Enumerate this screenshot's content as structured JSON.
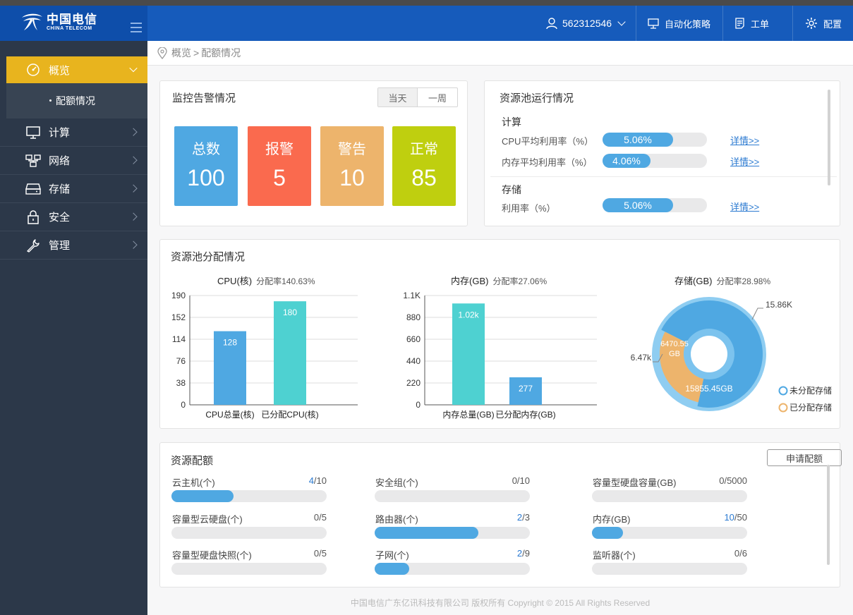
{
  "brand": {
    "name_cn": "中国电信",
    "name_en": "CHINA TELECOM"
  },
  "header": {
    "user": "562312546",
    "buttons": [
      {
        "label": "自动化策略",
        "icon": "monitor-icon"
      },
      {
        "label": "工单",
        "icon": "document-icon"
      },
      {
        "label": "配置",
        "icon": "gear-icon"
      }
    ]
  },
  "breadcrumb": {
    "home": "概览",
    "separator": ">",
    "current": "配额情况"
  },
  "sidebar": {
    "items": [
      {
        "label": "概览",
        "icon": "dashboard-icon",
        "active": true
      },
      {
        "label": "计算",
        "icon": "monitor-icon"
      },
      {
        "label": "网络",
        "icon": "network-icon"
      },
      {
        "label": "存储",
        "icon": "storage-icon"
      },
      {
        "label": "安全",
        "icon": "lock-icon"
      },
      {
        "label": "管理",
        "icon": "wrench-icon"
      }
    ],
    "submenu": {
      "label": "配额情况"
    }
  },
  "monitor": {
    "title": "监控告警情况",
    "tabs": [
      "当天",
      "一周"
    ],
    "boxes": [
      {
        "label": "总数",
        "value": "100",
        "color": "#4fa8e2"
      },
      {
        "label": "报警",
        "value": "5",
        "color": "#fa6a4e"
      },
      {
        "label": "警告",
        "value": "10",
        "color": "#edb46c"
      },
      {
        "label": "正常",
        "value": "85",
        "color": "#bfcf0f"
      }
    ]
  },
  "pool_running": {
    "title": "资源池运行情况",
    "compute": {
      "label": "计算",
      "rows": [
        {
          "label": "CPU平均利用率（%）",
          "value": "5.06%",
          "percent": 5.06,
          "link": "详情>>"
        },
        {
          "label": "内存平均利用率（%）",
          "value": "4.06%",
          "percent": 4.06,
          "link": "详情>>"
        }
      ]
    },
    "storage": {
      "label": "存储",
      "rows": [
        {
          "label": "利用率（%）",
          "value": "5.06%",
          "percent": 5.06,
          "link": "详情>>"
        }
      ]
    }
  },
  "allocation": {
    "title": "资源池分配情况",
    "cpu": {
      "title": "CPU(核)",
      "rate": "分配率140.63%"
    },
    "mem": {
      "title": "内存(GB)",
      "rate": "分配率27.06%"
    },
    "storage": {
      "title": "存储(GB)",
      "rate": "分配率28.98%"
    }
  },
  "chart_data": [
    {
      "type": "bar",
      "title": "CPU(核)",
      "subtitle": "分配率140.63%",
      "categories": [
        "CPU总量(核)",
        "已分配CPU(核)"
      ],
      "values": [
        128,
        180
      ],
      "value_labels": [
        "128",
        "180"
      ],
      "colors": [
        "#4fa8e2",
        "#4ed1d1"
      ],
      "yticks": [
        "0",
        "38",
        "76",
        "114",
        "152",
        "190"
      ],
      "ylim": [
        0,
        190
      ],
      "grid": true
    },
    {
      "type": "bar",
      "title": "内存(GB)",
      "subtitle": "分配率27.06%",
      "categories": [
        "内存总量(GB)",
        "已分配内存(GB)"
      ],
      "values": [
        1020,
        277
      ],
      "value_labels": [
        "1.02k",
        "277"
      ],
      "colors": [
        "#4ed1d1",
        "#4fa8e2"
      ],
      "yticks": [
        "0",
        "220",
        "440",
        "660",
        "880",
        "1.1K"
      ],
      "ylim": [
        0,
        1100
      ],
      "grid": true
    },
    {
      "type": "pie",
      "title": "存储(GB)",
      "subtitle": "分配率28.98%",
      "slices": [
        {
          "name": "未分配存储",
          "value": 15855.45,
          "label": "15855.45GB",
          "outer_label": "15.86K",
          "color": "#4fa8e2"
        },
        {
          "name": "已分配存储",
          "value": 6470.55,
          "label": "6470.55 GB",
          "outer_label": "6.47k",
          "color": "#edb46c"
        }
      ],
      "legend": "bottom-right",
      "donut": true
    }
  ],
  "quota": {
    "title": "资源配额",
    "apply_button": "申请配额",
    "items": [
      {
        "label": "云主机(个)",
        "used": "4",
        "total": "/10",
        "fraction": 0.4
      },
      {
        "label": "安全组(个)",
        "used": "0",
        "total": "/10",
        "fraction": 0
      },
      {
        "label": "容量型硬盘容量(GB)",
        "used": "0",
        "total": "/5000",
        "fraction": 0
      },
      {
        "label": "容量型云硬盘(个)",
        "used": "0",
        "total": "/5",
        "fraction": 0
      },
      {
        "label": "路由器(个)",
        "used": "2",
        "total": "/3",
        "fraction": 0.667
      },
      {
        "label": "内存(GB)",
        "used": "10",
        "total": "/50",
        "fraction": 0.2
      },
      {
        "label": "容量型硬盘快照(个)",
        "used": "0",
        "total": "/5",
        "fraction": 0
      },
      {
        "label": "子网(个)",
        "used": "2",
        "total": "/9",
        "fraction": 0.222
      },
      {
        "label": "监听器(个)",
        "used": "0",
        "total": "/6",
        "fraction": 0
      }
    ]
  },
  "footer": "中国电信广东亿讯科技有限公司  版权所有 Copyright © 2015 All Rights Reserved"
}
